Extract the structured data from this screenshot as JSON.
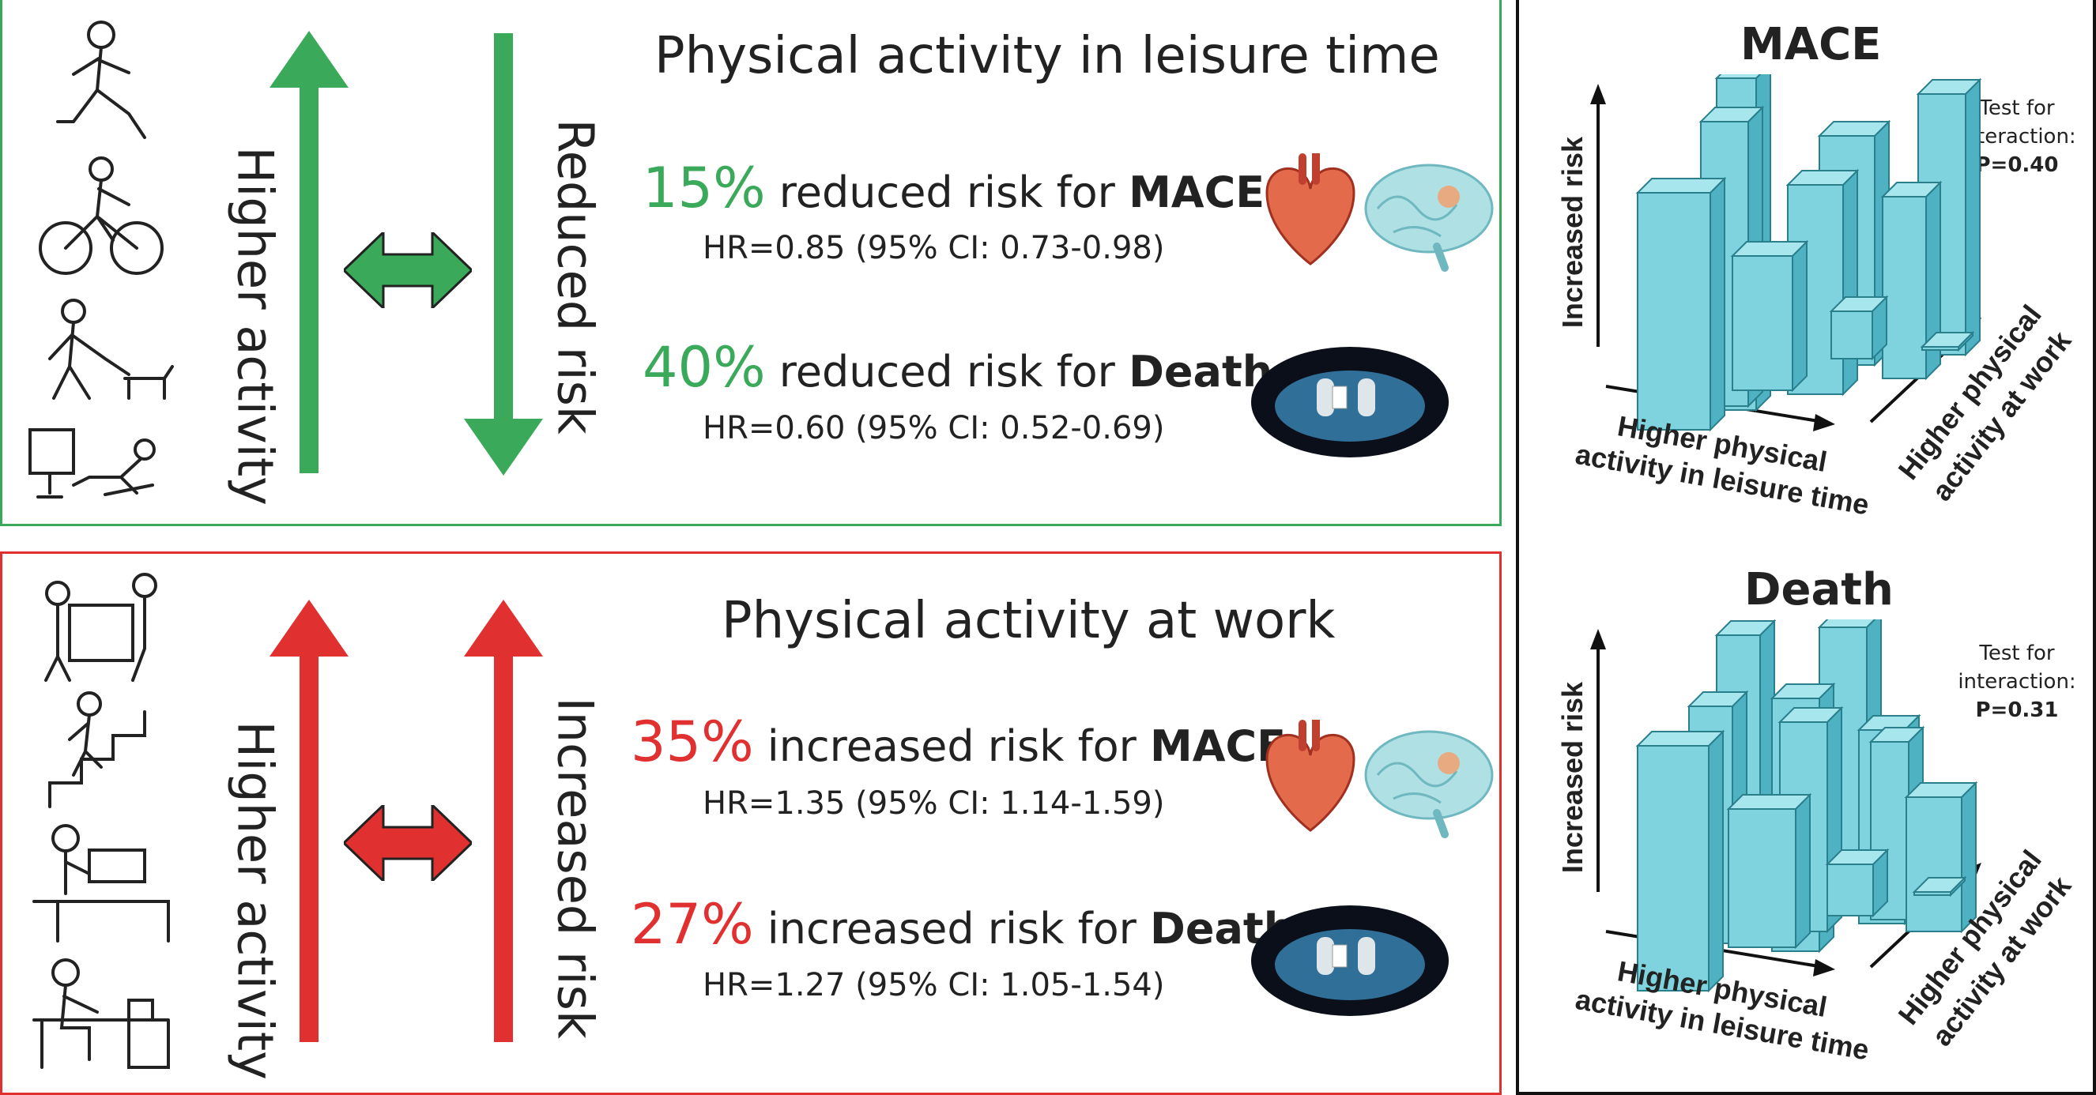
{
  "leisure": {
    "heading": "Physical activity in leisure time",
    "activity_label": "Higher activity",
    "risk_label": "Reduced risk",
    "mace": {
      "pct": "15%",
      "text": "reduced risk for",
      "outcome": "MACE",
      "hr": "HR=0.85 (95% CI: 0.73-0.98)"
    },
    "death": {
      "pct": "40%",
      "text": "reduced risk for",
      "outcome": "Death",
      "hr": "HR=0.60 (95% CI: 0.52-0.69)"
    },
    "color": "#3aaa5a"
  },
  "work": {
    "heading": "Physical activity at work",
    "activity_label": "Higher activity",
    "risk_label": "Increased risk",
    "mace": {
      "pct": "35%",
      "text": "increased risk for",
      "outcome": "MACE",
      "hr": "HR=1.35 (95% CI: 1.14-1.59)"
    },
    "death": {
      "pct": "27%",
      "text": "increased risk for",
      "outcome": "Death",
      "hr": "HR=1.27 (95% CI: 1.05-1.54)"
    },
    "color": "#e03030"
  },
  "charts": [
    {
      "title": "MACE",
      "interaction_label": "Test for interaction:",
      "p_value": "P=0.40",
      "y_label": "Increased risk",
      "x_label_1": "Higher physical",
      "x_label_2": "activity in leisure time",
      "z_label_1": "Higher physical",
      "z_label_2": "activity at work"
    },
    {
      "title": "Death",
      "interaction_label": "Test for interaction:",
      "p_value": "P=0.31",
      "y_label": "Increased risk",
      "x_label_1": "Higher physical",
      "x_label_2": "activity in leisure time",
      "z_label_1": "Higher physical",
      "z_label_2": "activity at work"
    }
  ],
  "icons": {
    "activity_figures": [
      "running-person-icon",
      "cyclist-icon",
      "dog-walker-icon",
      "sedentary-person-icon"
    ],
    "work_figures": [
      "furniture-mover-icon",
      "stair-climber-icon",
      "cashier-icon",
      "desk-worker-icon"
    ],
    "outcome_icons": [
      "heart-icon",
      "brain-icon",
      "deceased-feet-icon"
    ],
    "bar_color": "#7fd3de"
  }
}
